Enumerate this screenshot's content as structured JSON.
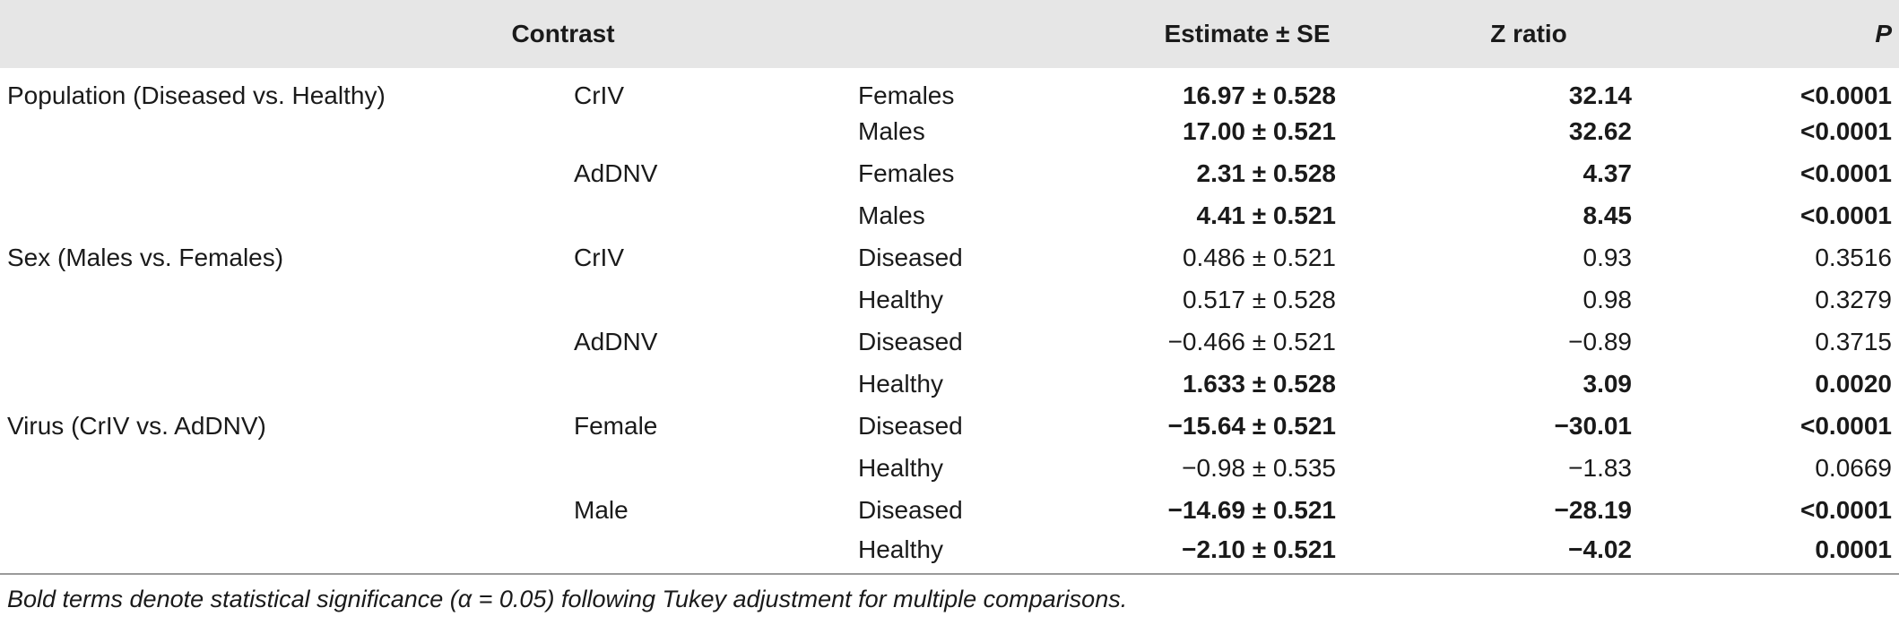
{
  "header": {
    "contrast": "Contrast",
    "estimate": "Estimate ± SE",
    "z_ratio": "Z ratio",
    "p": "P"
  },
  "rows": [
    {
      "contrast": "Population (Diseased vs. Healthy)",
      "level1": "CrIV",
      "level2": "Females",
      "estimate": "16.97 ± 0.528",
      "z": "32.14",
      "p": "<0.0001",
      "bold": true
    },
    {
      "contrast": "",
      "level1": "",
      "level2": "Males",
      "estimate": "17.00 ± 0.521",
      "z": "32.62",
      "p": "<0.0001",
      "bold": true
    },
    {
      "contrast": "",
      "level1": "AdDNV",
      "level2": "Females",
      "estimate": "2.31 ± 0.528",
      "z": "4.37",
      "p": "<0.0001",
      "bold": true
    },
    {
      "contrast": "",
      "level1": "",
      "level2": "Males",
      "estimate": "4.41 ± 0.521",
      "z": "8.45",
      "p": "<0.0001",
      "bold": true
    },
    {
      "contrast": "Sex (Males vs. Females)",
      "level1": "CrIV",
      "level2": "Diseased",
      "estimate": "0.486 ± 0.521",
      "z": "0.93",
      "p": "0.3516",
      "bold": false
    },
    {
      "contrast": "",
      "level1": "",
      "level2": "Healthy",
      "estimate": "0.517 ± 0.528",
      "z": "0.98",
      "p": "0.3279",
      "bold": false
    },
    {
      "contrast": "",
      "level1": "AdDNV",
      "level2": "Diseased",
      "estimate": "−0.466 ± 0.521",
      "z": "−0.89",
      "p": "0.3715",
      "bold": false
    },
    {
      "contrast": "",
      "level1": "",
      "level2": "Healthy",
      "estimate": "1.633 ± 0.528",
      "z": "3.09",
      "p": "0.0020",
      "bold": true
    },
    {
      "contrast": "Virus (CrIV vs. AdDNV)",
      "level1": "Female",
      "level2": "Diseased",
      "estimate": "−15.64 ± 0.521",
      "z": "−30.01",
      "p": "<0.0001",
      "bold": true
    },
    {
      "contrast": "",
      "level1": "",
      "level2": "Healthy",
      "estimate": "−0.98 ± 0.535",
      "z": "−1.83",
      "p": "0.0669",
      "bold": false
    },
    {
      "contrast": "",
      "level1": "Male",
      "level2": "Diseased",
      "estimate": "−14.69 ± 0.521",
      "z": "−28.19",
      "p": "<0.0001",
      "bold": true
    },
    {
      "contrast": "",
      "level1": "",
      "level2": "Healthy",
      "estimate": "−2.10 ± 0.521",
      "z": "−4.02",
      "p": "0.0001",
      "bold": true
    }
  ],
  "footnote": "Bold terms denote statistical significance (α = 0.05) following Tukey adjustment for multiple comparisons."
}
